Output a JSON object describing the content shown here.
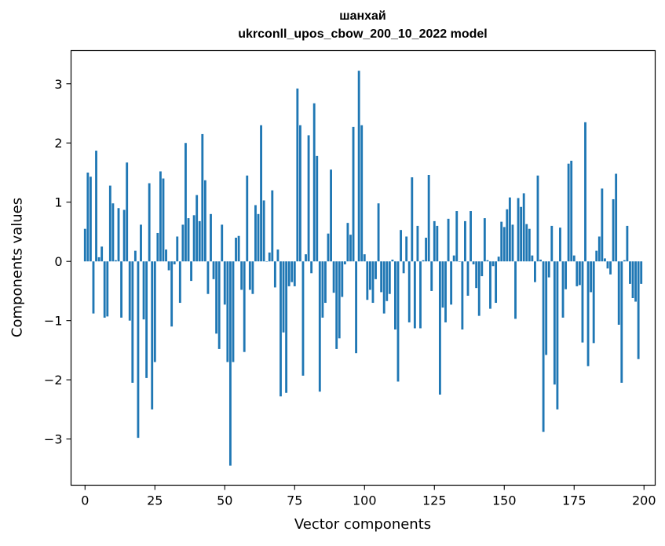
{
  "chart_data": {
    "type": "bar",
    "title": "шанхай",
    "subtitle": "ukrconll_upos_cbow_200_10_2022 model",
    "xlabel": "Vector components",
    "ylabel": "Components values",
    "xlim": [
      -5,
      204
    ],
    "ylim": [
      -3.78,
      3.56
    ],
    "xticks": [
      0,
      25,
      50,
      75,
      100,
      125,
      150,
      175,
      200
    ],
    "xtick_labels": [
      "0",
      "25",
      "50",
      "75",
      "100",
      "125",
      "150",
      "175",
      "200"
    ],
    "yticks": [
      -3,
      -2,
      -1,
      0,
      1,
      2,
      3
    ],
    "ytick_labels": [
      "−3",
      "−2",
      "−1",
      "0",
      "1",
      "2",
      "3"
    ],
    "bar_color": "#1f77b4",
    "grid": false,
    "values": [
      0.55,
      1.5,
      1.43,
      -0.88,
      1.87,
      0.07,
      0.25,
      -0.95,
      -0.93,
      1.28,
      0.98,
      0.02,
      0.9,
      -0.95,
      0.87,
      1.67,
      -1.0,
      -2.05,
      0.18,
      -2.98,
      0.62,
      -0.98,
      -1.97,
      1.32,
      -2.5,
      -1.7,
      0.48,
      1.52,
      1.4,
      0.2,
      -0.15,
      -1.1,
      -0.05,
      0.42,
      -0.7,
      0.62,
      2.0,
      0.73,
      -0.33,
      0.78,
      1.12,
      0.68,
      2.15,
      1.37,
      -0.55,
      0.8,
      -0.3,
      -1.22,
      -1.48,
      0.62,
      -0.73,
      -1.7,
      -3.45,
      -1.7,
      0.4,
      0.43,
      -0.48,
      -1.53,
      1.45,
      -0.48,
      -0.55,
      0.95,
      0.8,
      2.3,
      1.03,
      0.0,
      0.15,
      1.2,
      -0.44,
      0.2,
      -2.28,
      -1.2,
      -2.22,
      -0.42,
      -0.35,
      -0.42,
      2.92,
      2.3,
      -1.93,
      0.12,
      2.13,
      -0.2,
      2.67,
      1.78,
      -2.2,
      -0.95,
      -0.7,
      0.47,
      1.55,
      -0.53,
      -1.48,
      -1.3,
      -0.6,
      -0.05,
      0.65,
      0.45,
      2.27,
      -1.55,
      3.22,
      2.3,
      0.12,
      -0.65,
      -0.48,
      -0.7,
      -0.3,
      0.98,
      -0.52,
      -0.88,
      -0.67,
      -0.55,
      0.03,
      -1.15,
      -2.03,
      0.53,
      -0.2,
      0.42,
      -1.03,
      1.42,
      -1.13,
      0.6,
      -1.13,
      0.02,
      0.4,
      1.46,
      -0.5,
      0.68,
      0.6,
      -2.25,
      -0.78,
      -1.03,
      0.72,
      -0.73,
      0.1,
      0.85,
      0.0,
      -1.15,
      0.68,
      -0.58,
      0.85,
      -0.05,
      -0.45,
      -0.92,
      -0.25,
      0.73,
      0.02,
      -0.8,
      -0.08,
      -0.7,
      0.08,
      0.67,
      0.58,
      0.88,
      1.08,
      0.62,
      -0.97,
      1.07,
      0.92,
      1.15,
      0.63,
      0.55,
      0.1,
      -0.35,
      1.45,
      0.03,
      -2.88,
      -1.58,
      -0.27,
      0.6,
      -2.08,
      -2.5,
      0.57,
      -0.95,
      -0.47,
      1.65,
      1.7,
      0.1,
      -0.42,
      -0.4,
      -1.37,
      2.35,
      -1.77,
      -0.52,
      -1.38,
      0.18,
      0.42,
      1.23,
      0.05,
      -0.12,
      -0.22,
      1.05,
      1.48,
      -1.07,
      -2.05,
      0.02,
      0.6,
      -0.38,
      -0.62,
      -0.68,
      -1.65,
      -0.38
    ]
  }
}
